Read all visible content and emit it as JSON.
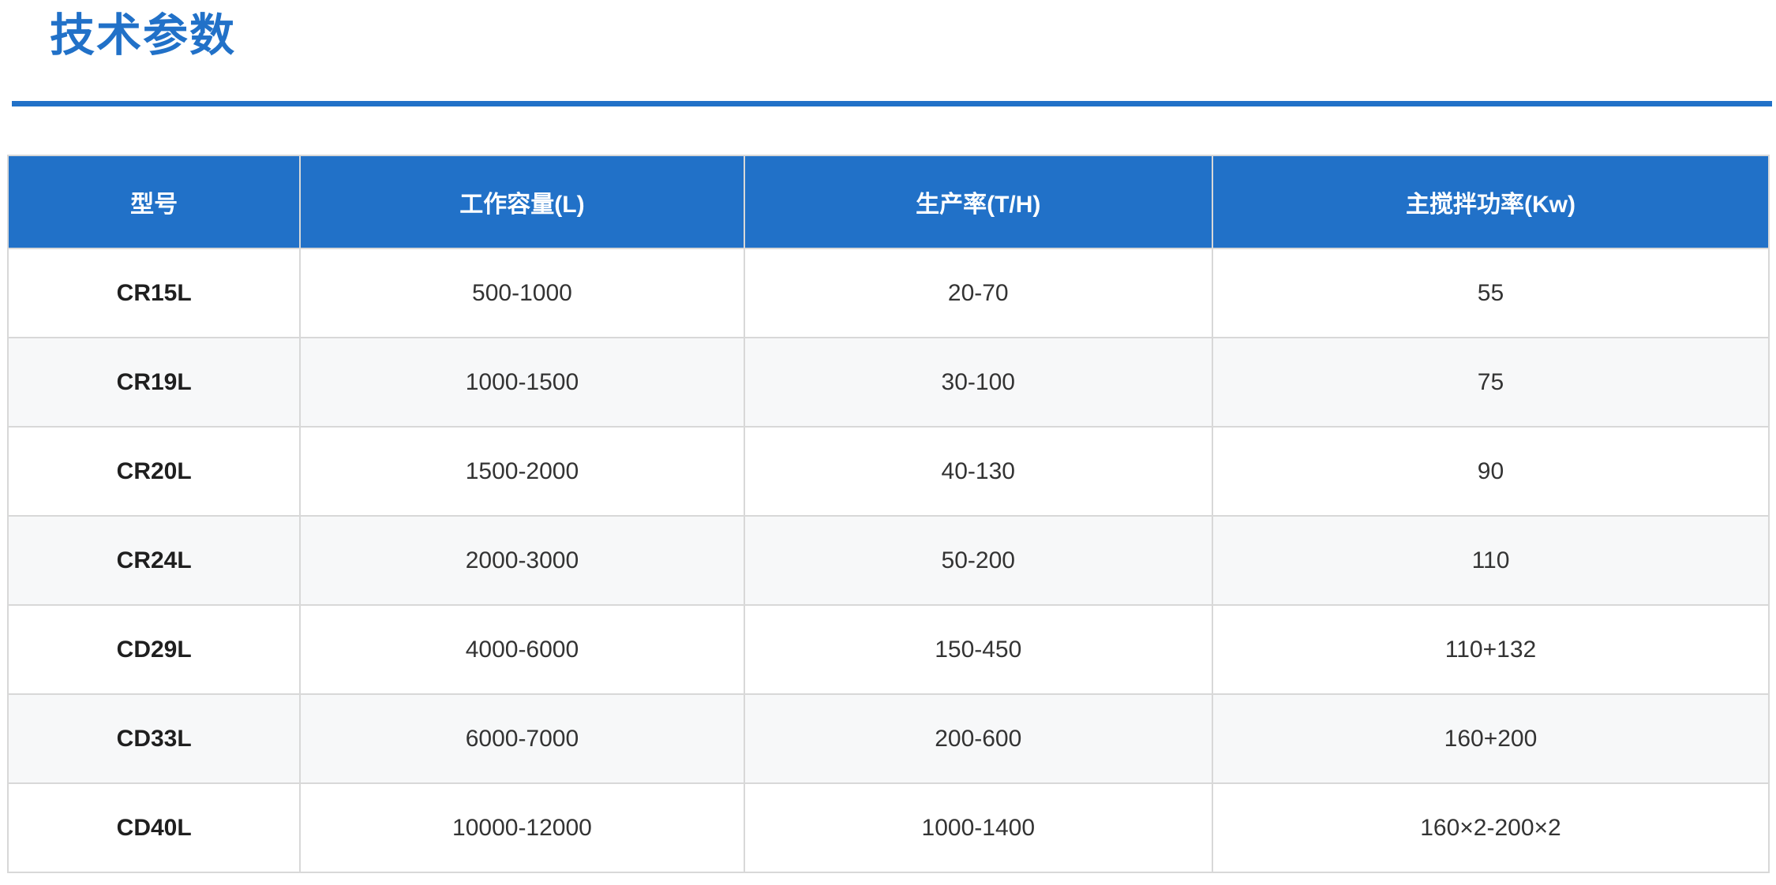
{
  "header": {
    "title": "技术参数"
  },
  "colors": {
    "accent": "#2171c8",
    "border": "#d8d8d8",
    "row-alt": "#f7f8f9",
    "text": "#333333"
  },
  "table": {
    "columns": [
      "型号",
      "工作容量(L)",
      "生产率(T/H)",
      "主搅拌功率(Kw)"
    ],
    "rows": [
      [
        "CR15L",
        "500-1000",
        "20-70",
        "55"
      ],
      [
        "CR19L",
        "1000-1500",
        "30-100",
        "75"
      ],
      [
        "CR20L",
        "1500-2000",
        "40-130",
        "90"
      ],
      [
        "CR24L",
        "2000-3000",
        "50-200",
        "110"
      ],
      [
        "CD29L",
        "4000-6000",
        "150-450",
        "110+132"
      ],
      [
        "CD33L",
        "6000-7000",
        "200-600",
        "160+200"
      ],
      [
        "CD40L",
        "10000-12000",
        "1000-1400",
        "160×2-200×2"
      ]
    ]
  }
}
